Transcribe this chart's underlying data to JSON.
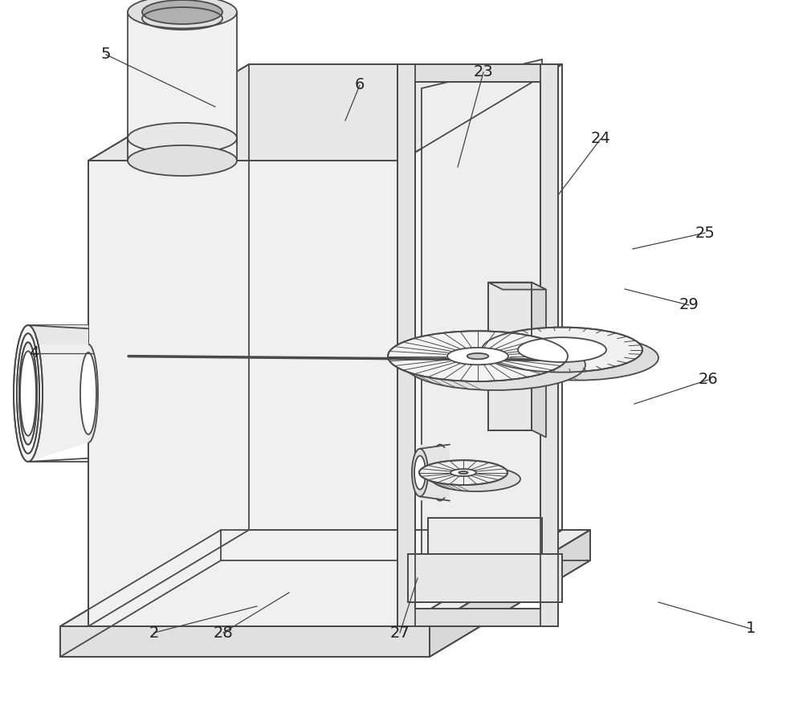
{
  "background_color": "#ffffff",
  "line_color": "#4a4a4a",
  "line_width": 1.3,
  "fig_width": 10.0,
  "fig_height": 8.88,
  "label_color": "#222222",
  "label_fontsize": 14
}
